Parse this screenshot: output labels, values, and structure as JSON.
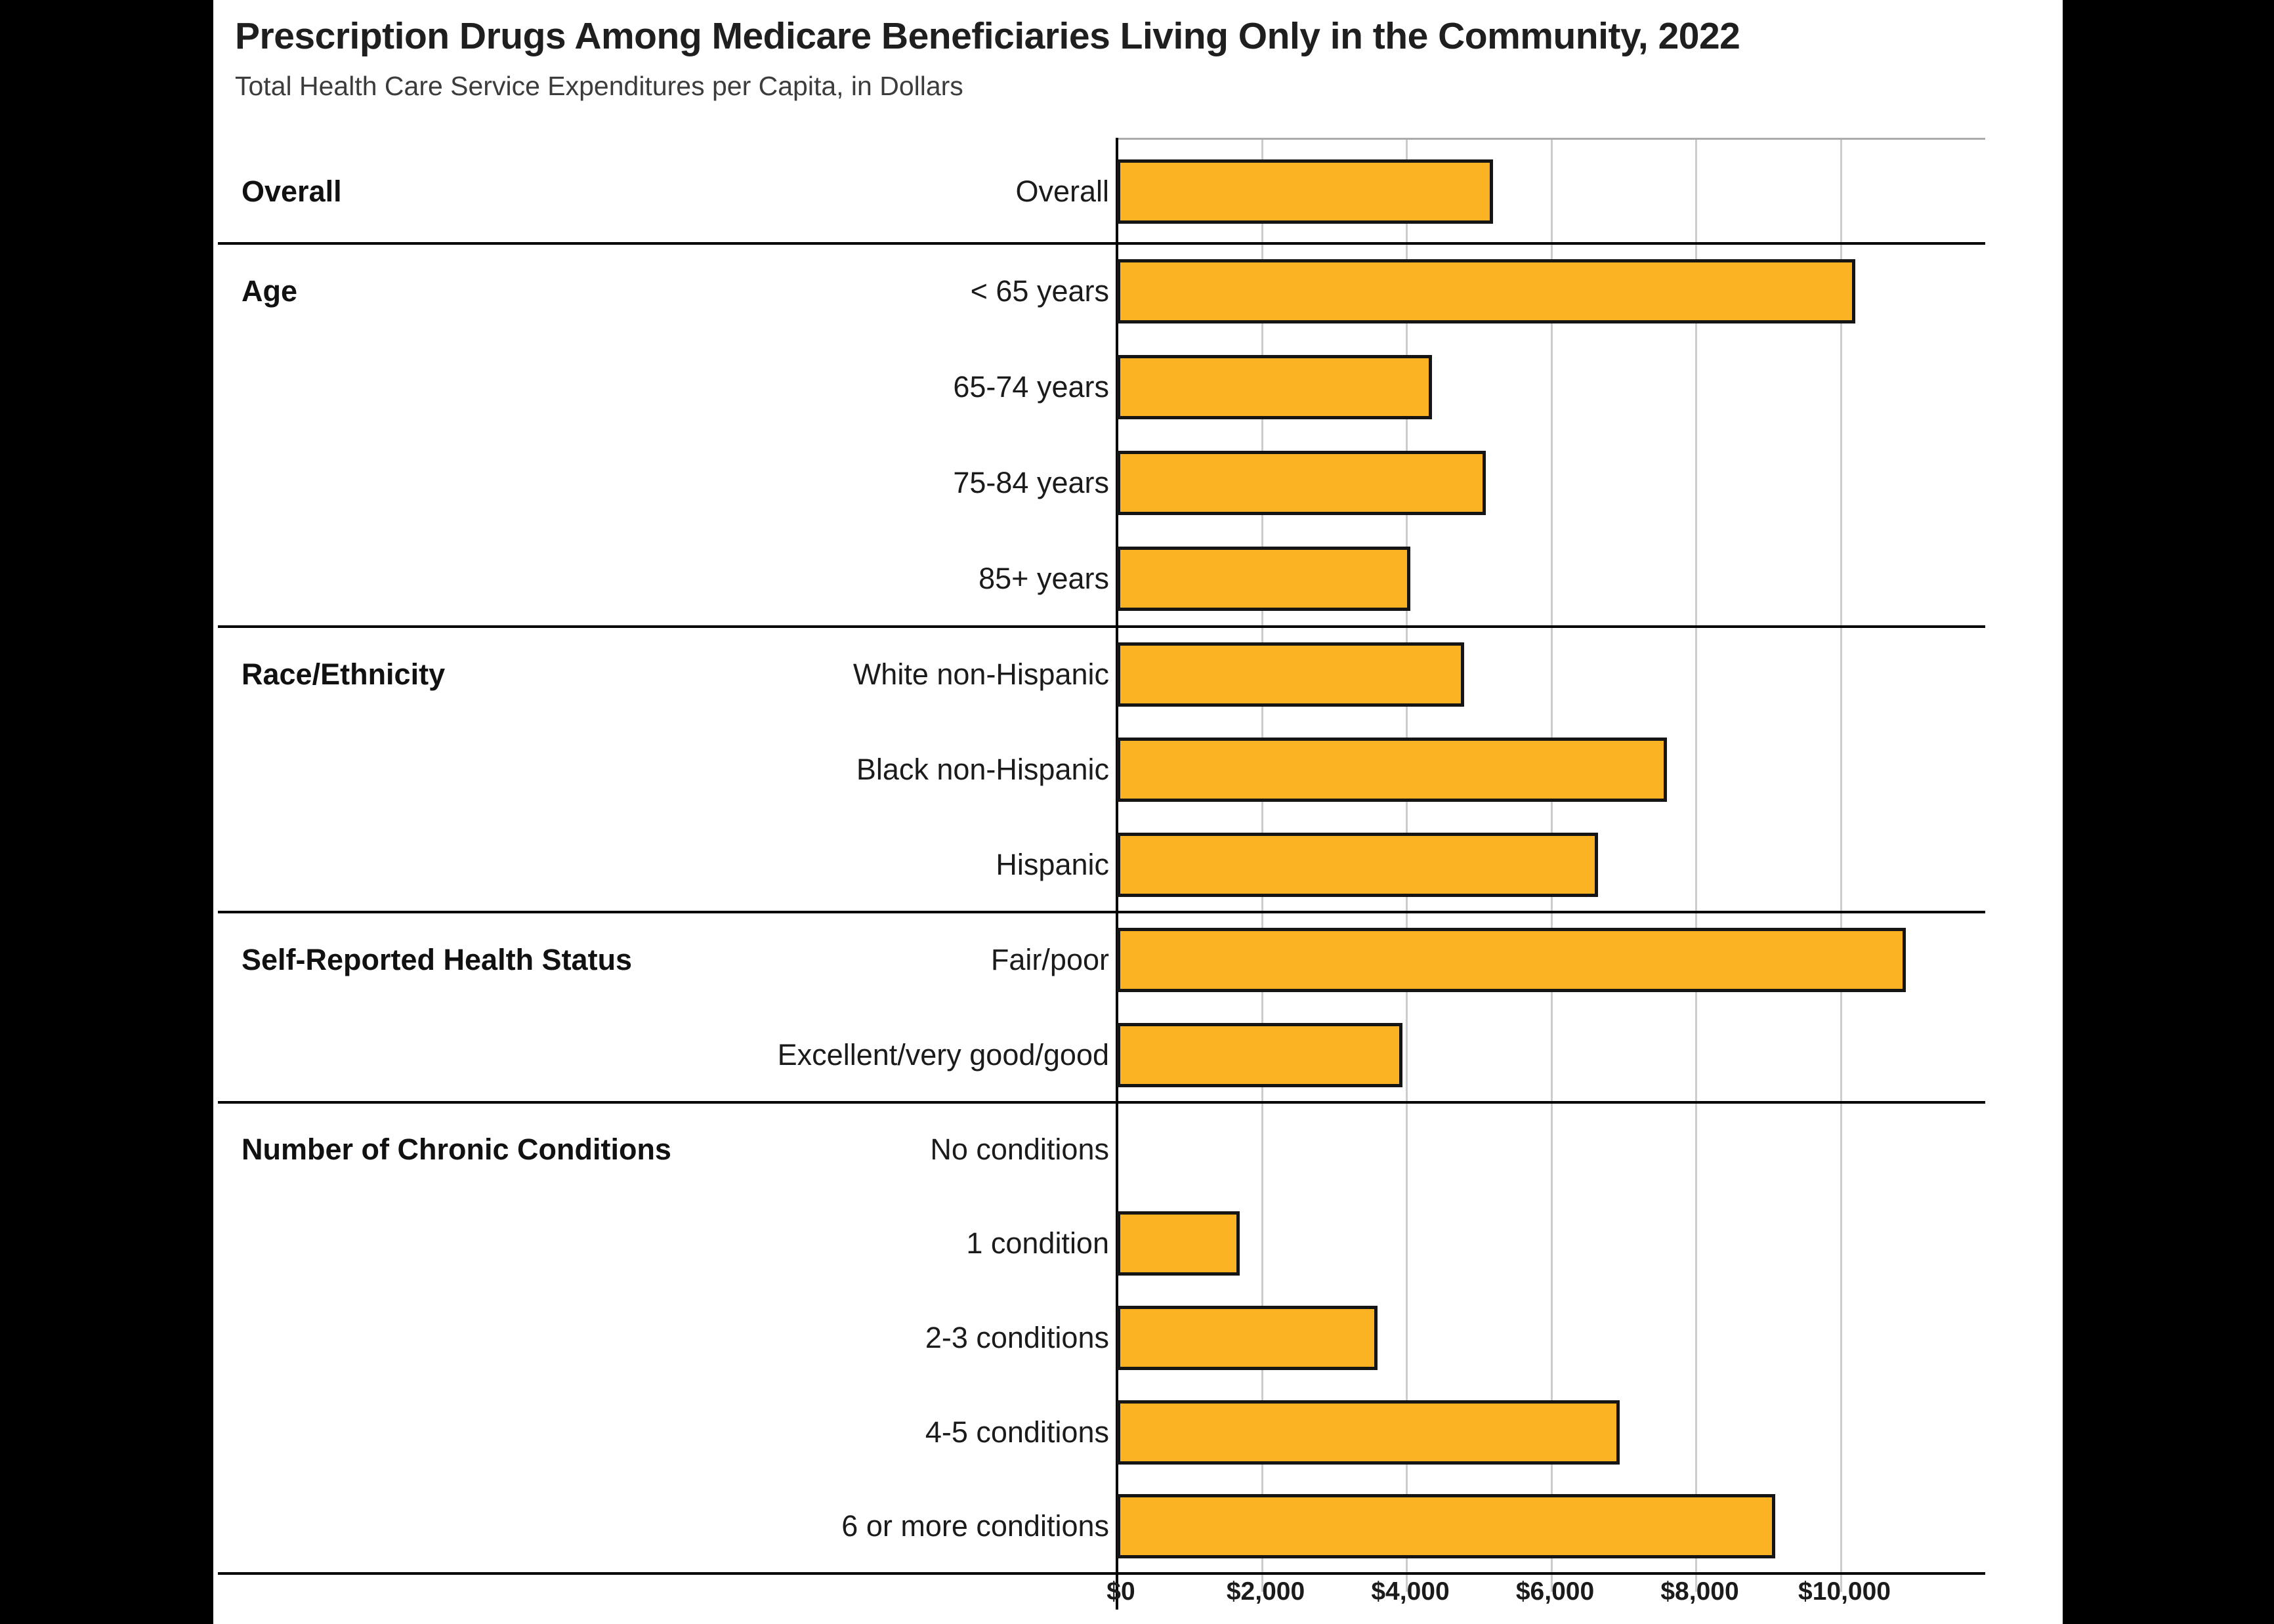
{
  "header": {
    "title": "Prescription Drugs Among Medicare Beneficiaries Living Only in the Community, 2022",
    "subtitle": "Total Health Care Service Expenditures per Capita, in Dollars"
  },
  "colors": {
    "background": "#000000",
    "panel": "#ffffff",
    "bar_fill": "#FBB324",
    "bar_border": "#151515",
    "gridline": "#cccccc",
    "plot_top_line": "#ababab",
    "axis_line": "#000000",
    "separator": "#000000",
    "title_text": "#1f1f1f",
    "subtitle_text": "#3c3c3c",
    "label_text": "#1b1b1b"
  },
  "chart_data": {
    "type": "bar",
    "orientation": "horizontal",
    "title": "Prescription Drugs Among Medicare Beneficiaries Living Only in the Community, 2022",
    "subtitle": "Total Health Care Service Expenditures per Capita, in Dollars",
    "xlabel": "Total Health Care Service Expenditures per Capita, in Dollars",
    "ylabel": "",
    "xlim": [
      0,
      12000
    ],
    "grid": "vertical",
    "legend": "none",
    "ticks": [
      {
        "value": 0,
        "label": "$0"
      },
      {
        "value": 2000,
        "label": "$2,000"
      },
      {
        "value": 4000,
        "label": "$4,000"
      },
      {
        "value": 6000,
        "label": "$6,000"
      },
      {
        "value": 8000,
        "label": "$8,000"
      },
      {
        "value": 10000,
        "label": "$10,000"
      }
    ],
    "groups": [
      {
        "label": "Overall",
        "rows": [
          {
            "label": "Overall",
            "value": 5200
          }
        ]
      },
      {
        "label": "Age",
        "rows": [
          {
            "label": "< 65 years",
            "value": 10200
          },
          {
            "label": "65-74 years",
            "value": 4350
          },
          {
            "label": "75-84 years",
            "value": 5100
          },
          {
            "label": "85+ years",
            "value": 4050
          }
        ]
      },
      {
        "label": "Race/Ethnicity",
        "rows": [
          {
            "label": "White non-Hispanic",
            "value": 4800
          },
          {
            "label": "Black non-Hispanic",
            "value": 7600
          },
          {
            "label": "Hispanic",
            "value": 6650
          }
        ]
      },
      {
        "label": "Self-Reported Health Status",
        "rows": [
          {
            "label": "Fair/poor",
            "value": 10900
          },
          {
            "label": "Excellent/very good/good",
            "value": 3950
          }
        ]
      },
      {
        "label": "Number of Chronic Conditions",
        "rows": [
          {
            "label": "No conditions",
            "value": 0
          },
          {
            "label": "1 condition",
            "value": 1700
          },
          {
            "label": "2-3 conditions",
            "value": 3600
          },
          {
            "label": "4-5 conditions",
            "value": 6950
          },
          {
            "label": "6 or more conditions",
            "value": 9100
          }
        ]
      }
    ]
  }
}
